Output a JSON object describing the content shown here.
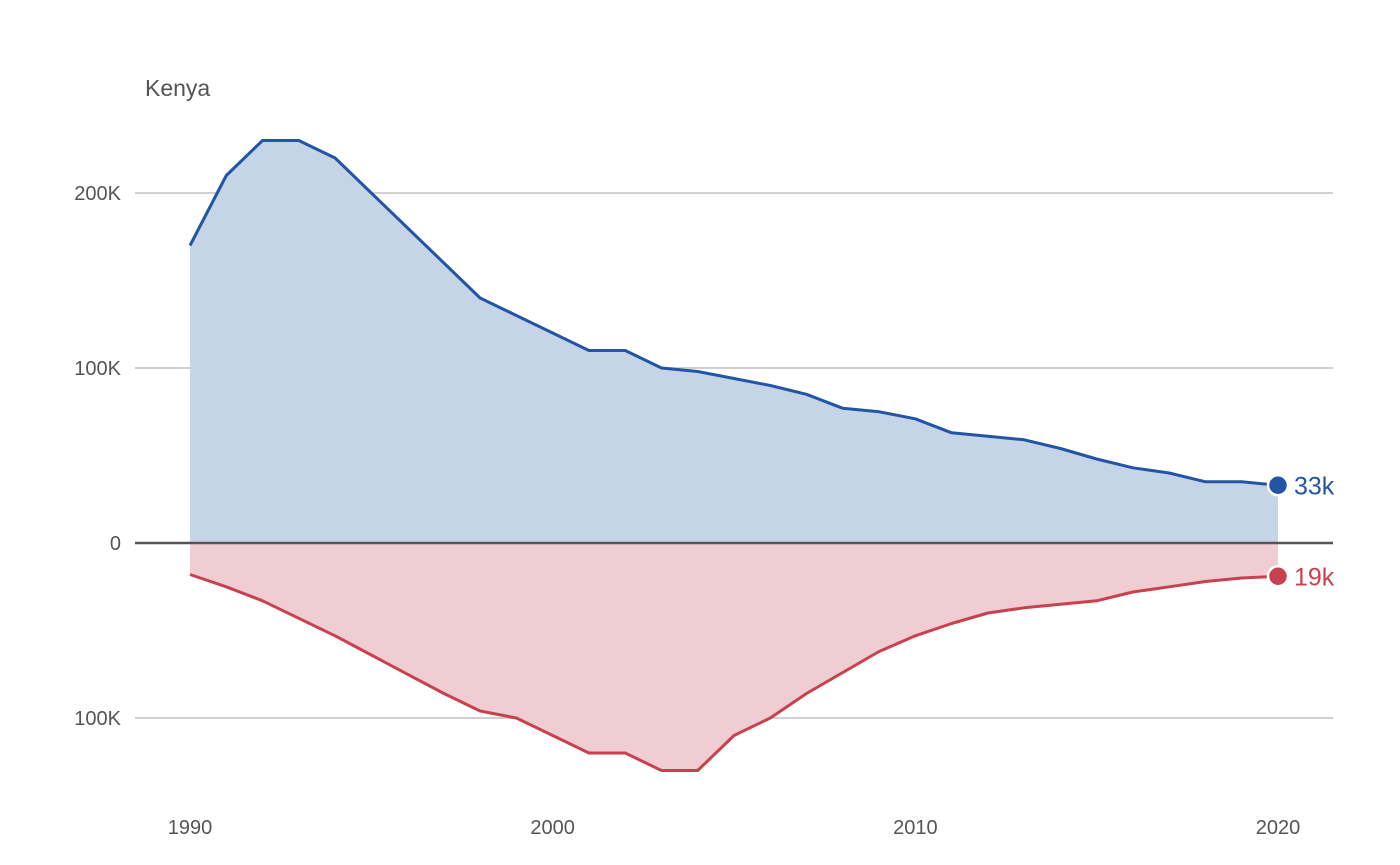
{
  "chart_data": {
    "type": "area",
    "title": "Kenya",
    "x": [
      1990,
      1991,
      1992,
      1993,
      1994,
      1995,
      1996,
      1997,
      1998,
      1999,
      2000,
      2001,
      2002,
      2003,
      2004,
      2005,
      2006,
      2007,
      2008,
      2009,
      2010,
      2011,
      2012,
      2013,
      2014,
      2015,
      2016,
      2017,
      2018,
      2019,
      2020
    ],
    "series": [
      {
        "color": "#2255a4",
        "fill": "#c6d4e8",
        "direction": "up",
        "end_label": "33k",
        "values": [
          170000,
          210000,
          230000,
          230000,
          220000,
          200000,
          180000,
          160000,
          140000,
          130000,
          120000,
          110000,
          110000,
          100000,
          98000,
          94000,
          90000,
          85000,
          77000,
          75000,
          71000,
          63000,
          61000,
          59000,
          54000,
          48000,
          43000,
          40000,
          35000,
          35000,
          33000
        ]
      },
      {
        "color": "#c8414f",
        "fill": "#f0cdd2",
        "direction": "down",
        "end_label": "19k",
        "values": [
          18000,
          25000,
          33000,
          43000,
          53000,
          64000,
          75000,
          86000,
          96000,
          100000,
          110000,
          120000,
          120000,
          130000,
          130000,
          110000,
          100000,
          86000,
          74000,
          62000,
          53000,
          46000,
          40000,
          37000,
          35000,
          33000,
          28000,
          25000,
          22000,
          20000,
          19000
        ]
      }
    ],
    "y_ticks": [
      {
        "value": 200000,
        "label": "200K"
      },
      {
        "value": 100000,
        "label": "100K"
      },
      {
        "value": 0,
        "label": "0"
      },
      {
        "value": -100000,
        "label": "100K"
      }
    ],
    "x_ticks": [
      {
        "value": 1990,
        "label": "1990"
      },
      {
        "value": 2000,
        "label": "2000"
      },
      {
        "value": 2010,
        "label": "2010"
      },
      {
        "value": 2020,
        "label": "2020"
      }
    ],
    "ylim": [
      -130000,
      230000
    ],
    "xlim": [
      1990,
      2020
    ],
    "grid": true,
    "legend": "none"
  }
}
